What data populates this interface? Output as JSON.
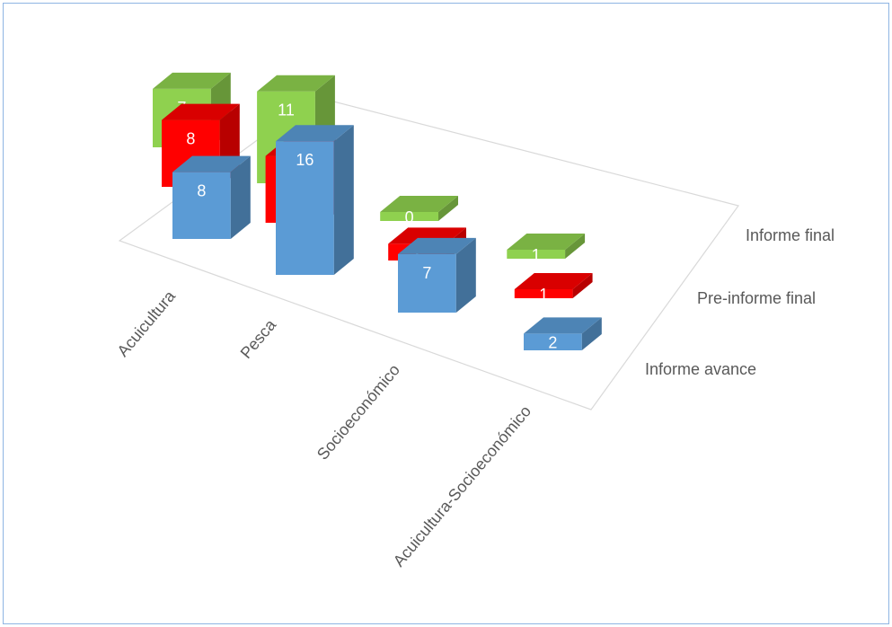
{
  "chart_data": {
    "type": "bar",
    "subtype": "3d-column",
    "categories": [
      "Acuicultura",
      "Pesca",
      "Socioeconómico",
      "Acuicultura-Socioeconómico"
    ],
    "series": [
      {
        "name": "Informe avance",
        "values": [
          8,
          16,
          7,
          2
        ],
        "color": "#5b9bd5"
      },
      {
        "name": "Pre-informe final",
        "values": [
          8,
          8,
          2,
          1
        ],
        "color": "#ff0000"
      },
      {
        "name": "Informe final",
        "values": [
          7,
          11,
          0,
          1
        ],
        "color": "#8fd14f"
      }
    ],
    "title": "",
    "xlabel": "",
    "ylabel": "",
    "legend": "none",
    "grid": false,
    "data_labels": true
  }
}
